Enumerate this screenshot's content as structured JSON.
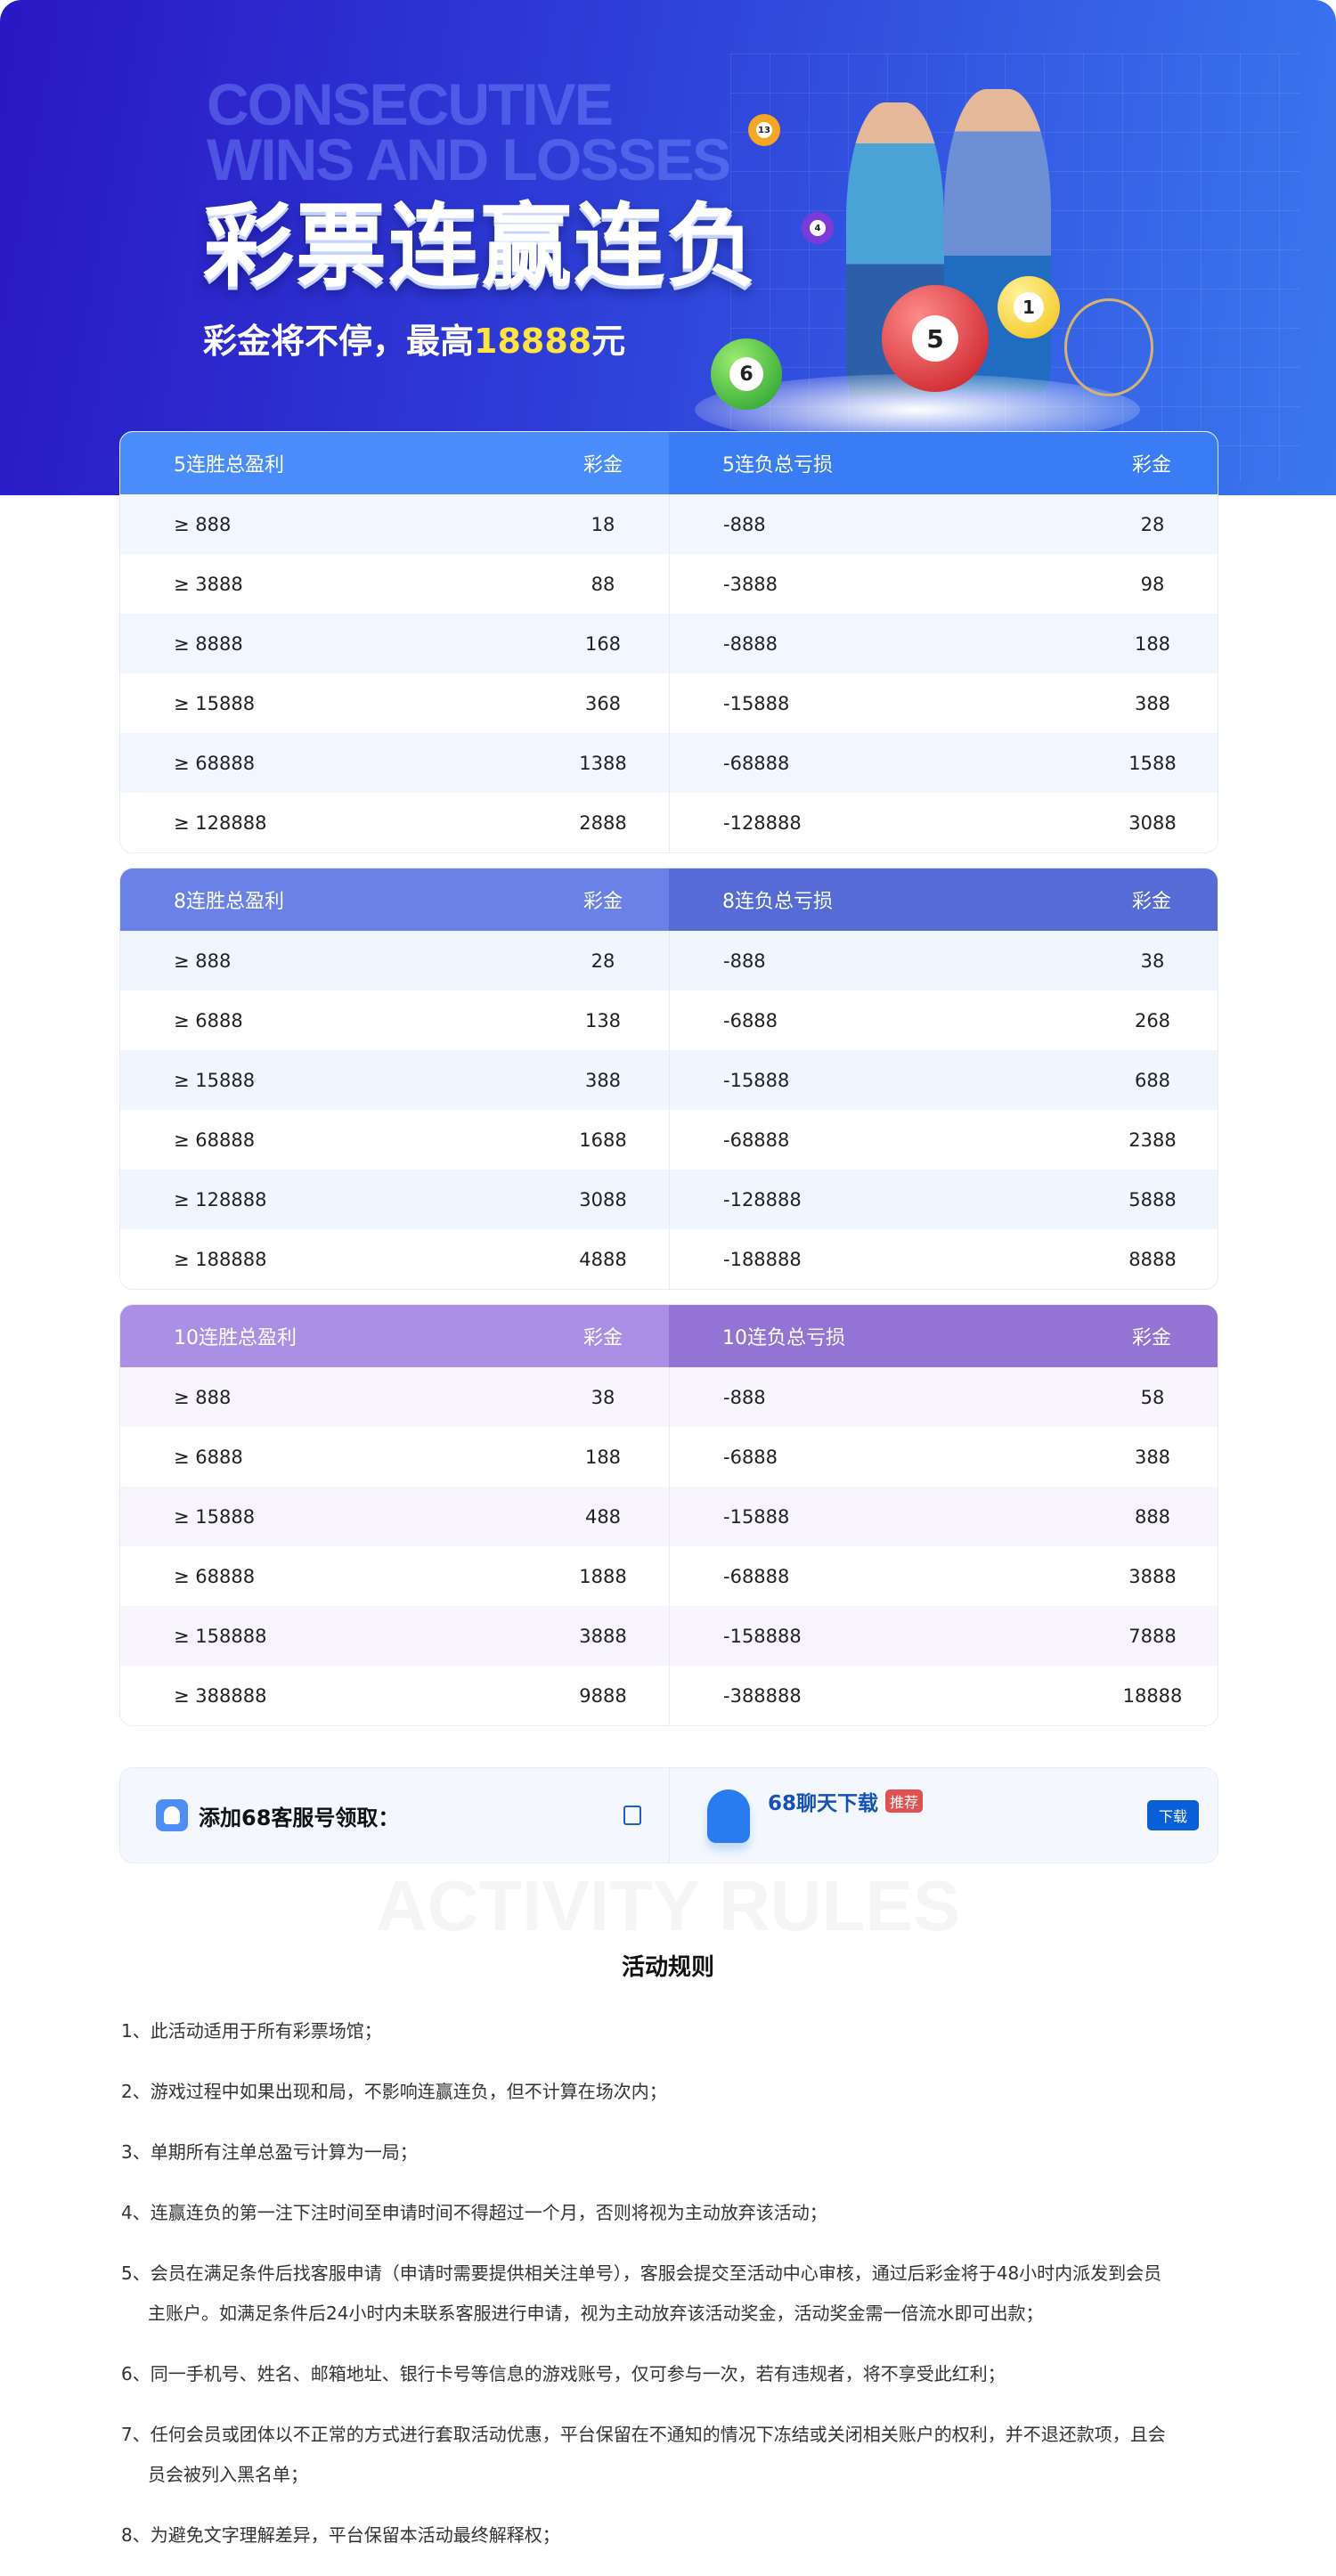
{
  "banner": {
    "en_title_line1": "CONSECUTIVE",
    "en_title_line2": "WINS AND LOSSES",
    "title": "彩票连赢连负",
    "subtitle_prefix": "彩金将不停，最高",
    "subtitle_amount": "18888",
    "subtitle_suffix": "元",
    "ball_labels": [
      "13",
      "4",
      "6",
      "1",
      "5"
    ]
  },
  "colors": {
    "accent_yellow": "#ffe53b",
    "primary_blue": "#0a5fd8",
    "badge_red": "#e05252"
  },
  "tables": [
    {
      "win_header": "5连胜总盈利",
      "win_prize_header": "彩金",
      "loss_header": "5连负总亏损",
      "loss_prize_header": "彩金",
      "header_colors": [
        "#4b8cfd",
        "#3a7cf4"
      ],
      "alt_row": "#f2f7ff",
      "rows": [
        [
          "≥ 888",
          "18",
          "-888",
          "28"
        ],
        [
          "≥ 3888",
          "88",
          "-3888",
          "98"
        ],
        [
          "≥ 8888",
          "168",
          "-8888",
          "188"
        ],
        [
          "≥ 15888",
          "368",
          "-15888",
          "388"
        ],
        [
          "≥ 68888",
          "1388",
          "-68888",
          "1588"
        ],
        [
          "≥ 128888",
          "2888",
          "-128888",
          "3088"
        ]
      ]
    },
    {
      "win_header": "8连胜总盈利",
      "win_prize_header": "彩金",
      "loss_header": "8连负总亏损",
      "loss_prize_header": "彩金",
      "header_colors": [
        "#6a82e7",
        "#566bd5"
      ],
      "alt_row": "#f0f6fe",
      "rows": [
        [
          "≥ 888",
          "28",
          "-888",
          "38"
        ],
        [
          "≥ 6888",
          "138",
          "-6888",
          "268"
        ],
        [
          "≥ 15888",
          "388",
          "-15888",
          "688"
        ],
        [
          "≥ 68888",
          "1688",
          "-68888",
          "2388"
        ],
        [
          "≥ 128888",
          "3088",
          "-128888",
          "5888"
        ],
        [
          "≥ 188888",
          "4888",
          "-188888",
          "8888"
        ]
      ]
    },
    {
      "win_header": "10连胜总盈利",
      "win_prize_header": "彩金",
      "loss_header": "10连负总亏损",
      "loss_prize_header": "彩金",
      "header_colors": [
        "#aa8fe4",
        "#9373d3"
      ],
      "alt_row": "#f8f5fd",
      "rows": [
        [
          "≥ 888",
          "38",
          "-888",
          "58"
        ],
        [
          "≥ 6888",
          "188",
          "-6888",
          "388"
        ],
        [
          "≥ 15888",
          "488",
          "-15888",
          "888"
        ],
        [
          "≥ 68888",
          "1888",
          "-68888",
          "3888"
        ],
        [
          "≥ 158888",
          "3888",
          "-158888",
          "7888"
        ],
        [
          "≥ 388888",
          "9888",
          "-388888",
          "18888"
        ]
      ]
    }
  ],
  "contact": {
    "service_label": "添加68客服号领取：",
    "service_icon": "octopus-app-icon",
    "copy_icon": "copy-icon",
    "app_name": "68聊天下载",
    "badge": "推荐",
    "download_label": "下载"
  },
  "rules": {
    "en_title": "ACTIVITY RULES",
    "title": "活动规则",
    "items": [
      "1、此活动适用于所有彩票场馆；",
      "2、游戏过程中如果出现和局，不影响连赢连负，但不计算在场次内；",
      "3、单期所有注单总盈亏计算为一局；",
      "4、连赢连负的第一注下注时间至申请时间不得超过一个月，否则将视为主动放弃该活动；",
      "5、会员在满足条件后找客服申请（申请时需要提供相关注单号），客服会提交至活动中心审核，通过后彩金将于48小时内派发到会员主账户。如满足条件后24小时内未联系客服进行申请，视为主动放弃该活动奖金，活动奖金需一倍流水即可出款；",
      "6、同一手机号、姓名、邮箱地址、银行卡号等信息的游戏账号，仅可参与一次，若有违规者，将不享受此红利；",
      "7、任何会员或团体以不正常的方式进行套取活动优惠，平台保留在不通知的情况下冻结或关闭相关账户的权利，并不退还款项，且会员会被列入黑名单；",
      "8、为避免文字理解差异，平台保留本活动最终解释权；"
    ]
  }
}
